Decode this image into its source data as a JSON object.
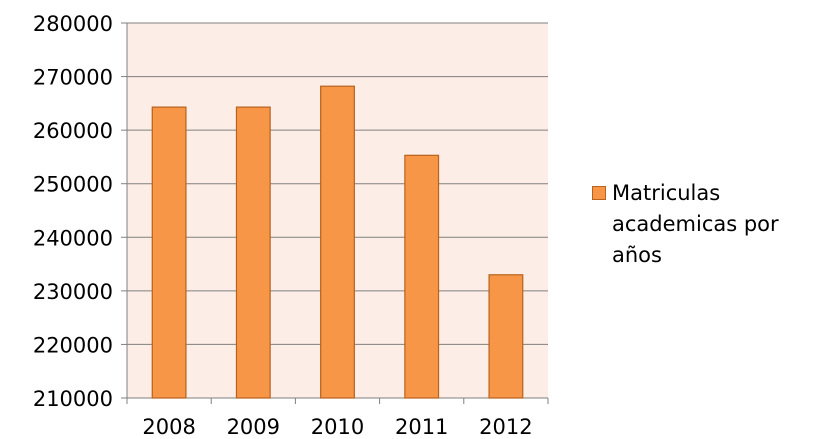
{
  "colors": {
    "plot_background": "#FCEDE6",
    "bar_fill": "#F79646",
    "bar_stroke": "#B8621E",
    "grid": "#808080",
    "axis": "#808080",
    "text": "#000000"
  },
  "chart_data": {
    "type": "bar",
    "title": "",
    "xlabel": "",
    "ylabel": "",
    "categories": [
      "2008",
      "2009",
      "2010",
      "2011",
      "2012"
    ],
    "series": [
      {
        "name": "Matriculas academicas por años",
        "values": [
          264300,
          264300,
          268200,
          255300,
          233000
        ]
      }
    ],
    "ylim": [
      210000,
      280000
    ],
    "yticks": [
      "210000",
      "220000",
      "230000",
      "240000",
      "250000",
      "260000",
      "270000",
      "280000"
    ],
    "grid": true,
    "legend": "right"
  }
}
